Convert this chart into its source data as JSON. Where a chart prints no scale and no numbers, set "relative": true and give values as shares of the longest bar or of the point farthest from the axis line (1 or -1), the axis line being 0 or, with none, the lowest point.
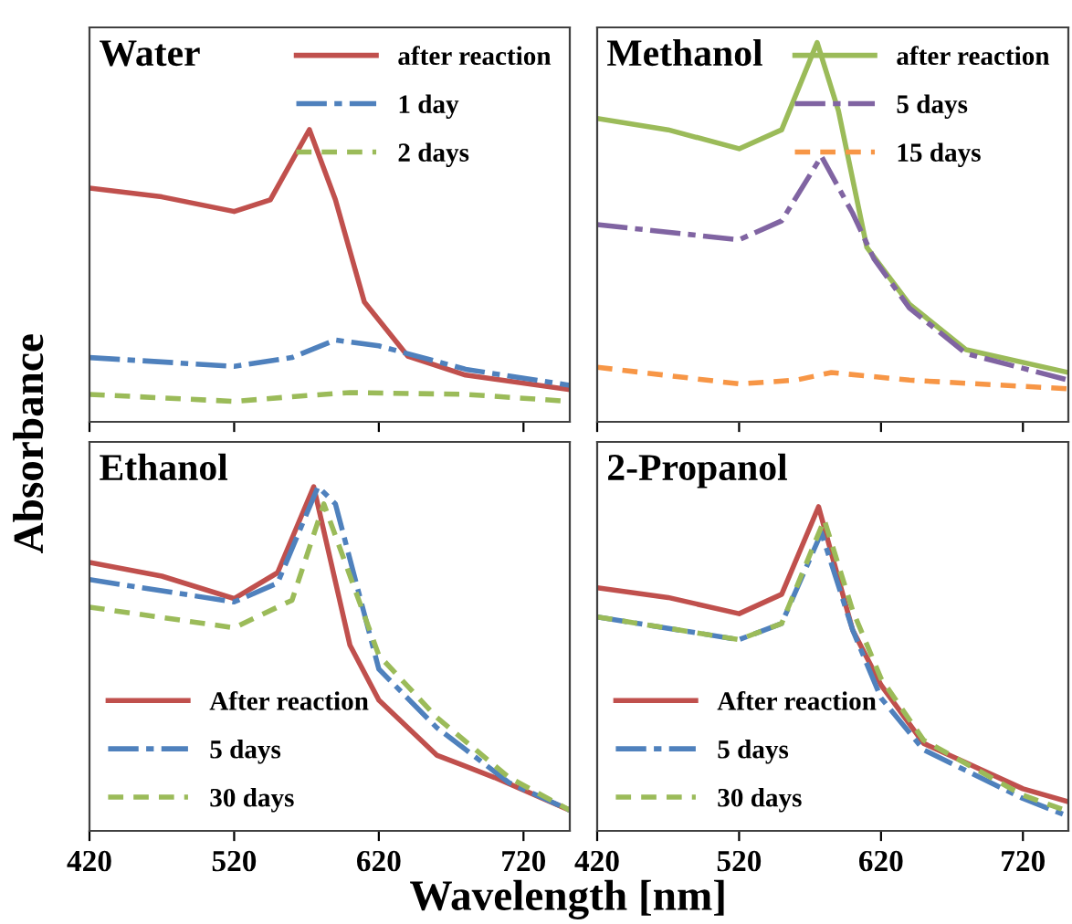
{
  "chart_data": [
    {
      "type": "line",
      "title": "Water",
      "ylabel": "Absorbance",
      "relative": true,
      "xlim": [
        420,
        752
      ],
      "xticks": [
        420,
        520,
        620,
        720
      ],
      "tick_labels": false,
      "legend": "top right",
      "series": [
        {
          "name": "after reaction",
          "color": "#c0504d",
          "line_style": "solid",
          "x": [
            420,
            470,
            520,
            545,
            572,
            590,
            610,
            640,
            680,
            752
          ],
          "values": [
            0.8,
            0.77,
            0.72,
            0.76,
            1.0,
            0.76,
            0.41,
            0.225,
            0.16,
            0.11
          ]
        },
        {
          "name": "1 day",
          "color": "#4f81bd",
          "line_style": "dashed",
          "x": [
            420,
            520,
            560,
            590,
            620,
            680,
            752
          ],
          "values": [
            0.22,
            0.19,
            0.22,
            0.28,
            0.26,
            0.18,
            0.125
          ]
        },
        {
          "name": "2 days",
          "color": "#9bbb59",
          "line_style": "dashed",
          "x": [
            420,
            520,
            570,
            600,
            680,
            752
          ],
          "values": [
            0.094,
            0.07,
            0.09,
            0.1,
            0.094,
            0.07
          ]
        }
      ]
    },
    {
      "type": "line",
      "title": "Methanol",
      "relative": true,
      "xlim": [
        420,
        752
      ],
      "xticks": [
        420,
        520,
        620,
        720
      ],
      "tick_labels": false,
      "legend": "top right",
      "series": [
        {
          "name": "after reaction",
          "color": "#9bbb59",
          "line_style": "solid",
          "x": [
            420,
            470,
            520,
            550,
            575,
            590,
            610,
            640,
            680,
            752
          ],
          "values": [
            0.8,
            0.77,
            0.72,
            0.77,
            1.0,
            0.82,
            0.46,
            0.31,
            0.19,
            0.13
          ]
        },
        {
          "name": "5 days",
          "color": "#8064a2",
          "line_style": "dashed",
          "x": [
            420,
            520,
            550,
            578,
            600,
            615,
            640,
            680,
            752
          ],
          "values": [
            0.52,
            0.48,
            0.53,
            0.7,
            0.55,
            0.43,
            0.3,
            0.18,
            0.11
          ]
        },
        {
          "name": "15 days",
          "color": "#f79646",
          "line_style": "dashed",
          "x": [
            420,
            520,
            560,
            585,
            640,
            752
          ],
          "values": [
            0.144,
            0.1,
            0.11,
            0.13,
            0.11,
            0.087
          ]
        }
      ]
    },
    {
      "type": "line",
      "title": "Ethanol",
      "xlabel": "Wavelength [nm]",
      "relative": true,
      "xlim": [
        420,
        752
      ],
      "xticks": [
        420,
        520,
        620,
        720
      ],
      "tick_labels": "x",
      "legend": "bottom left",
      "series": [
        {
          "name": "After reaction",
          "color": "#c0504d",
          "line_style": "solid",
          "x": [
            420,
            470,
            520,
            550,
            575,
            600,
            620,
            660,
            700,
            752
          ],
          "values": [
            0.78,
            0.74,
            0.675,
            0.75,
            1.0,
            0.54,
            0.38,
            0.22,
            0.155,
            0.06
          ]
        },
        {
          "name": "5 days",
          "color": "#4f81bd",
          "line_style": "dashed",
          "x": [
            420,
            520,
            550,
            578,
            590,
            620,
            660,
            710,
            752
          ],
          "values": [
            0.73,
            0.665,
            0.72,
            1.0,
            0.95,
            0.47,
            0.3,
            0.14,
            0.06
          ]
        },
        {
          "name": "30 days",
          "color": "#9bbb59",
          "line_style": "dashed",
          "x": [
            420,
            520,
            560,
            582,
            620,
            660,
            710,
            752
          ],
          "values": [
            0.65,
            0.59,
            0.67,
            0.95,
            0.51,
            0.33,
            0.155,
            0.06
          ]
        }
      ]
    },
    {
      "type": "line",
      "title": "2-Propanol",
      "relative": true,
      "xlim": [
        420,
        752
      ],
      "xticks": [
        420,
        520,
        620,
        720
      ],
      "tick_labels": "x",
      "legend": "bottom left",
      "series": [
        {
          "name": "After reaction",
          "color": "#c0504d",
          "line_style": "solid",
          "x": [
            420,
            470,
            520,
            550,
            576,
            600,
            620,
            650,
            720,
            752
          ],
          "values": [
            0.75,
            0.72,
            0.67,
            0.73,
            1.0,
            0.62,
            0.45,
            0.27,
            0.13,
            0.09
          ]
        },
        {
          "name": "5 days",
          "color": "#4f81bd",
          "line_style": "dashed",
          "x": [
            420,
            520,
            550,
            578,
            600,
            620,
            650,
            720,
            752
          ],
          "values": [
            0.66,
            0.59,
            0.64,
            0.92,
            0.62,
            0.41,
            0.25,
            0.1,
            0.045
          ]
        },
        {
          "name": "30 days",
          "color": "#9bbb59",
          "line_style": "dashed",
          "x": [
            420,
            520,
            550,
            580,
            600,
            620,
            650,
            720,
            752
          ],
          "values": [
            0.66,
            0.59,
            0.64,
            0.96,
            0.68,
            0.47,
            0.28,
            0.11,
            0.06
          ]
        }
      ]
    }
  ]
}
